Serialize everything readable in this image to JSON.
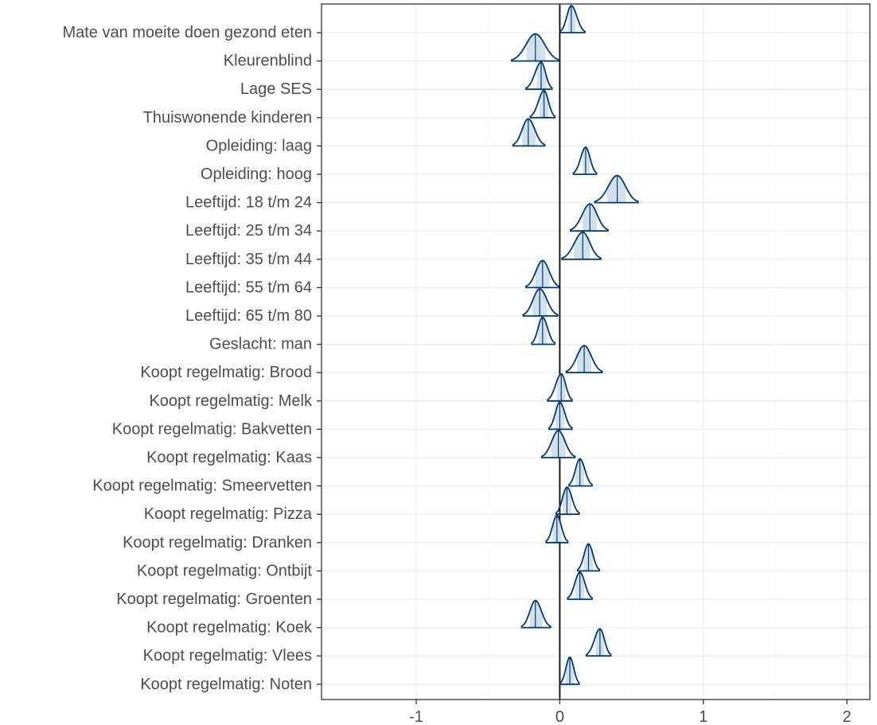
{
  "chart_data": {
    "type": "ridgeline-posterior",
    "title": "",
    "xlabel": "",
    "ylabel": "",
    "xlim": [
      -1.66,
      2.16
    ],
    "xticks": [
      -1,
      0,
      1,
      2
    ],
    "xtick_labels": [
      "-1",
      "0",
      "1",
      "2"
    ],
    "reference_line_x": 0,
    "grid": true,
    "colors": {
      "fill": "#d1e1ec",
      "outline": "#03396c",
      "axis": "#333333",
      "grid": "#ebebeb"
    },
    "categories": [
      "Mate van moeite doen gezond eten",
      "Kleurenblind",
      "Lage SES",
      "Thuiswonende kinderen",
      "Opleiding: laag",
      "Opleiding: hoog",
      "Leeftijd: 18 t/m 24",
      "Leeftijd: 25 t/m 34",
      "Leeftijd: 35 t/m 44",
      "Leeftijd: 55 t/m 64",
      "Leeftijd: 65 t/m 80",
      "Geslacht: man",
      "Koopt regelmatig: Brood",
      "Koopt regelmatig: Melk",
      "Koopt regelmatig: Bakvetten",
      "Koopt regelmatig: Kaas",
      "Koopt regelmatig: Smeervetten",
      "Koopt regelmatig: Pizza",
      "Koopt regelmatig: Dranken",
      "Koopt regelmatig: Ontbijt",
      "Koopt regelmatig: Groenten",
      "Koopt regelmatig: Koek",
      "Koopt regelmatig: Vlees",
      "Koopt regelmatig: Noten"
    ],
    "medians": [
      0.08,
      -0.17,
      -0.13,
      -0.11,
      -0.22,
      0.18,
      0.4,
      0.21,
      0.16,
      -0.12,
      -0.14,
      -0.12,
      0.17,
      0.01,
      0.0,
      -0.01,
      0.14,
      0.05,
      -0.02,
      0.2,
      0.14,
      -0.17,
      0.28,
      0.07
    ],
    "interval_low": [
      0.06,
      -0.23,
      -0.16,
      -0.14,
      -0.26,
      0.16,
      0.33,
      0.16,
      0.1,
      -0.17,
      -0.19,
      -0.15,
      0.12,
      -0.02,
      -0.03,
      -0.06,
      0.11,
      0.02,
      -0.05,
      0.17,
      0.11,
      -0.21,
      0.25,
      0.04
    ],
    "interval_high": [
      0.11,
      -0.1,
      -0.09,
      -0.08,
      -0.17,
      0.21,
      0.46,
      0.26,
      0.21,
      -0.07,
      -0.09,
      -0.09,
      0.22,
      0.04,
      0.03,
      0.04,
      0.17,
      0.08,
      0.01,
      0.23,
      0.17,
      -0.12,
      0.31,
      0.1
    ],
    "range_low": [
      0.0,
      -0.34,
      -0.24,
      -0.21,
      -0.33,
      0.09,
      0.24,
      0.07,
      0.01,
      -0.24,
      -0.26,
      -0.2,
      0.04,
      -0.09,
      -0.08,
      -0.13,
      0.06,
      -0.03,
      -0.1,
      0.12,
      0.05,
      -0.27,
      0.18,
      0.0
    ],
    "range_high": [
      0.18,
      0.0,
      -0.05,
      -0.03,
      -0.1,
      0.26,
      0.55,
      0.34,
      0.29,
      0.0,
      -0.01,
      -0.03,
      0.3,
      0.09,
      0.09,
      0.11,
      0.23,
      0.14,
      0.06,
      0.28,
      0.23,
      -0.06,
      0.36,
      0.14
    ]
  }
}
